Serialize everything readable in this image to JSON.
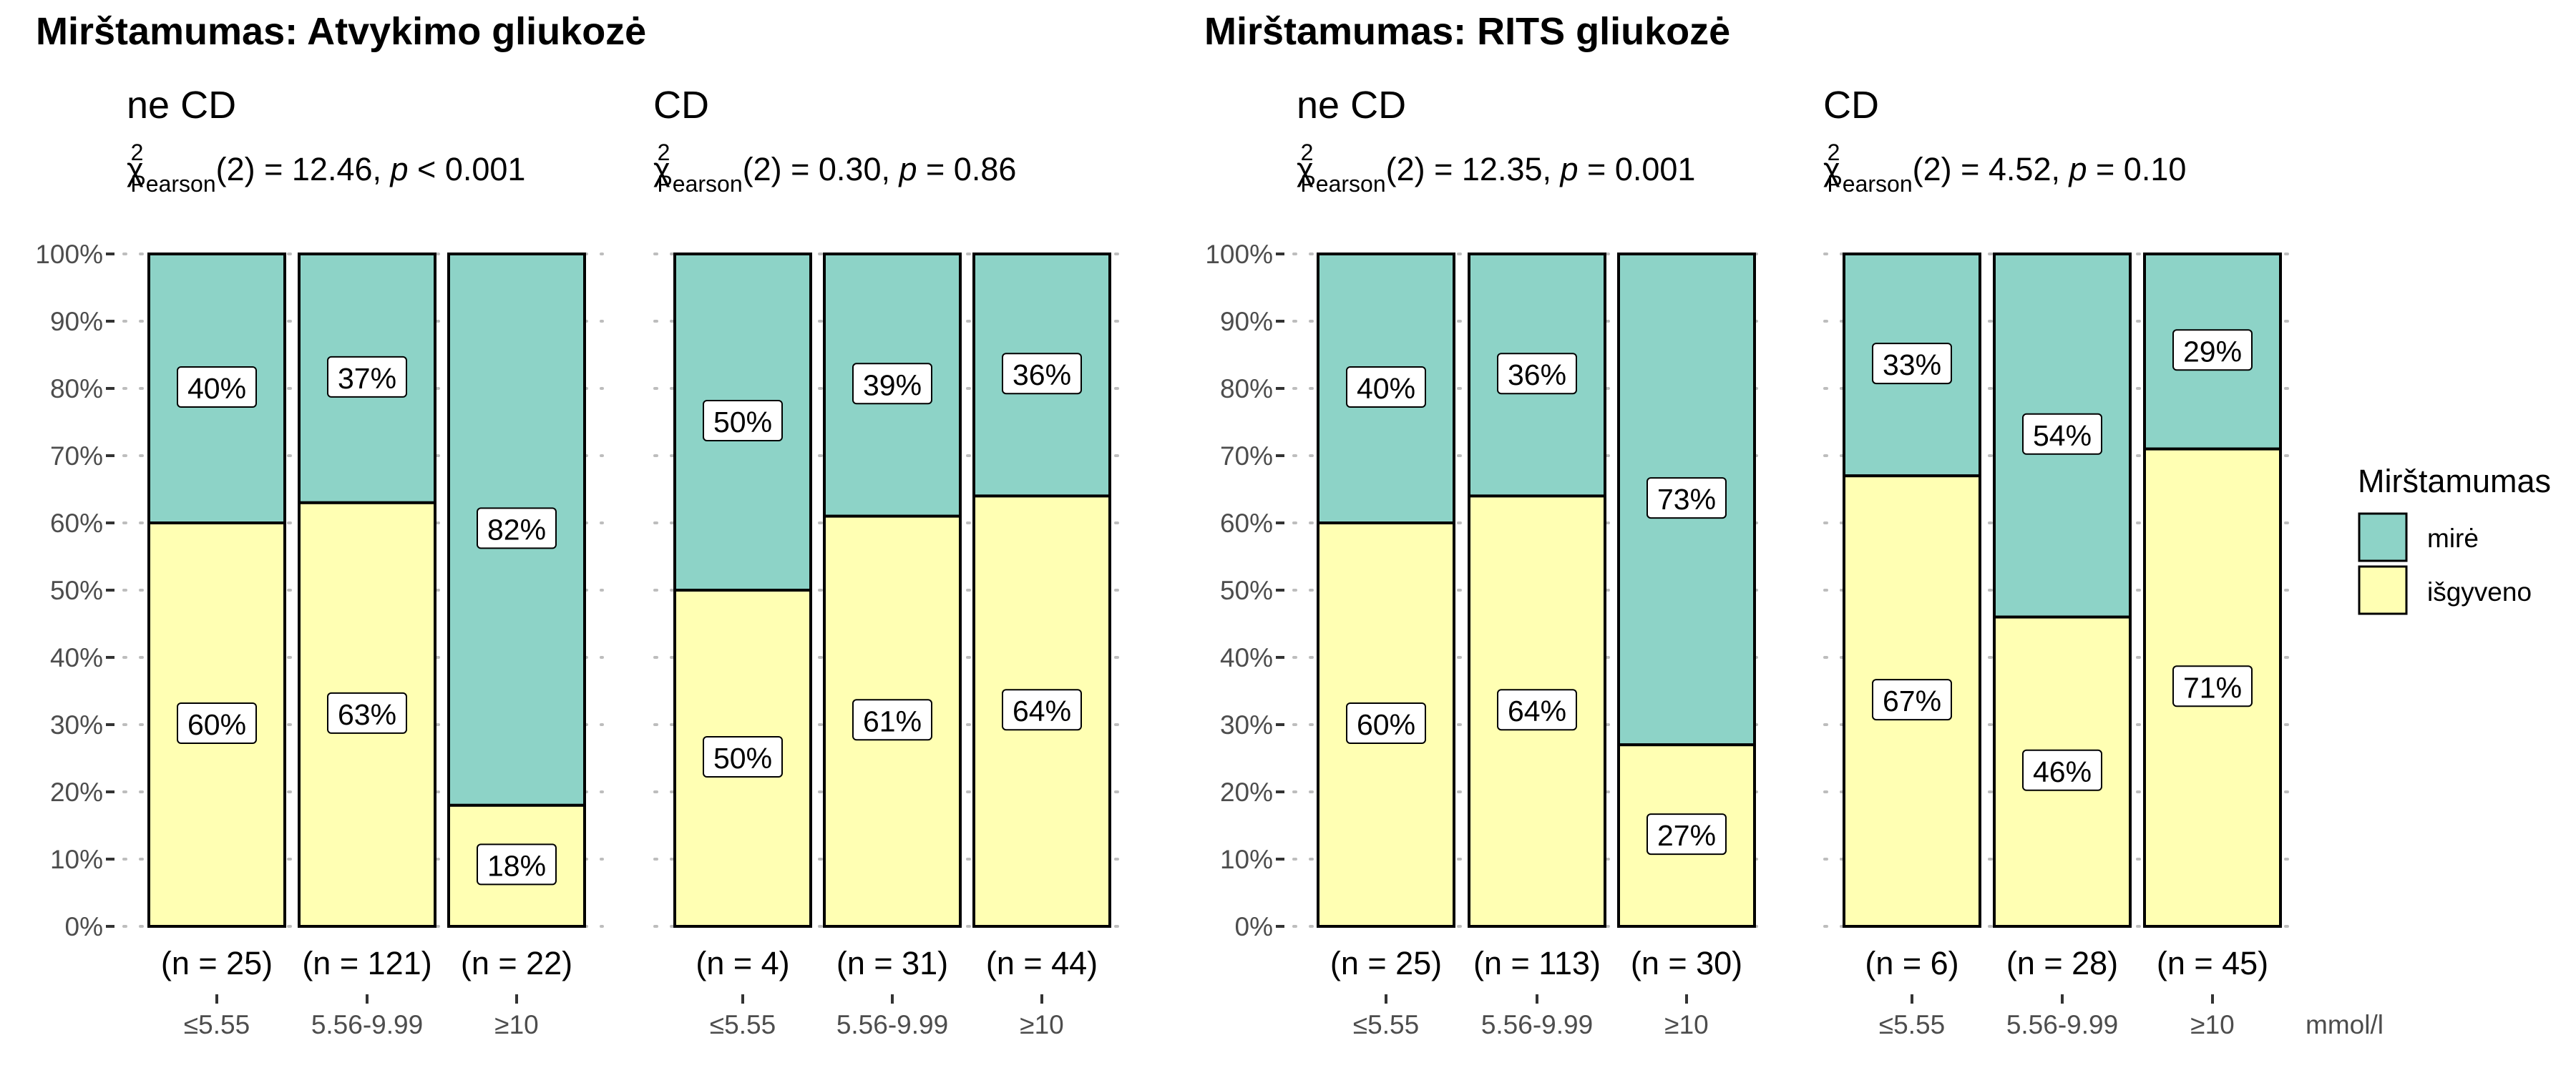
{
  "colors": {
    "mire": "#8DD3C7",
    "isgyveno": "#FFFFB3",
    "outline": "#000000"
  },
  "y_axis_labels": [
    "0%",
    "10%",
    "20%",
    "30%",
    "40%",
    "50%",
    "60%",
    "70%",
    "80%",
    "90%",
    "100%"
  ],
  "x_unit_label": "mmol/l",
  "legend": {
    "title": "Mirštamumas",
    "items": [
      {
        "label": "mirė",
        "color": "#8DD3C7"
      },
      {
        "label": "išgyveno",
        "color": "#FFFFB3"
      }
    ]
  },
  "chart_data": [
    {
      "type": "bar",
      "stacked": "percent",
      "title": "Mirštamumas: Atvykimo gliukozė",
      "facet": "ne CD",
      "stat": {
        "chi_sub": "Pearson",
        "df": "(2) = 12.46, ",
        "p_text": " < 0.001"
      },
      "categories": [
        "≤5.55",
        "5.56-9.99",
        "≥10"
      ],
      "n_labels": [
        "(n = 25)",
        "(n = 121)",
        "(n = 22)"
      ],
      "series": [
        {
          "name": "mirė",
          "values": [
            40,
            37,
            82
          ],
          "labels": [
            "40%",
            "37%",
            "82%"
          ]
        },
        {
          "name": "išgyveno",
          "values": [
            60,
            63,
            18
          ],
          "labels": [
            "60%",
            "63%",
            "18%"
          ]
        }
      ],
      "ylim": [
        0,
        100
      ]
    },
    {
      "type": "bar",
      "stacked": "percent",
      "facet": "CD",
      "stat": {
        "chi_sub": "Pearson",
        "df": "(2) = 0.30, ",
        "p_text": " = 0.86"
      },
      "categories": [
        "≤5.55",
        "5.56-9.99",
        "≥10"
      ],
      "n_labels": [
        "(n = 4)",
        "(n = 31)",
        "(n = 44)"
      ],
      "series": [
        {
          "name": "mirė",
          "values": [
            50,
            39,
            36
          ],
          "labels": [
            "50%",
            "39%",
            "36%"
          ]
        },
        {
          "name": "išgyveno",
          "values": [
            50,
            61,
            64
          ],
          "labels": [
            "50%",
            "61%",
            "64%"
          ]
        }
      ],
      "ylim": [
        0,
        100
      ]
    },
    {
      "type": "bar",
      "stacked": "percent",
      "title": "Mirštamumas: RITS gliukozė",
      "facet": "ne CD",
      "stat": {
        "chi_sub": "Pearson",
        "df": "(2) = 12.35, ",
        "p_text": " = 0.001"
      },
      "categories": [
        "≤5.55",
        "5.56-9.99",
        "≥10"
      ],
      "n_labels": [
        "(n = 25)",
        "(n = 113)",
        "(n = 30)"
      ],
      "series": [
        {
          "name": "mirė",
          "values": [
            40,
            36,
            73
          ],
          "labels": [
            "40%",
            "36%",
            "73%"
          ]
        },
        {
          "name": "išgyveno",
          "values": [
            60,
            64,
            27
          ],
          "labels": [
            "60%",
            "64%",
            "27%"
          ]
        }
      ],
      "ylim": [
        0,
        100
      ]
    },
    {
      "type": "bar",
      "stacked": "percent",
      "facet": "CD",
      "stat": {
        "chi_sub": "Pearson",
        "df": "(2) = 4.52, ",
        "p_text": " = 0.10"
      },
      "categories": [
        "≤5.55",
        "5.56-9.99",
        "≥10"
      ],
      "n_labels": [
        "(n = 6)",
        "(n = 28)",
        "(n = 45)"
      ],
      "series": [
        {
          "name": "mirė",
          "values": [
            33,
            54,
            29
          ],
          "labels": [
            "33%",
            "54%",
            "29%"
          ]
        },
        {
          "name": "išgyveno",
          "values": [
            67,
            46,
            71
          ],
          "labels": [
            "67%",
            "46%",
            "71%"
          ]
        }
      ],
      "ylim": [
        0,
        100
      ]
    }
  ]
}
